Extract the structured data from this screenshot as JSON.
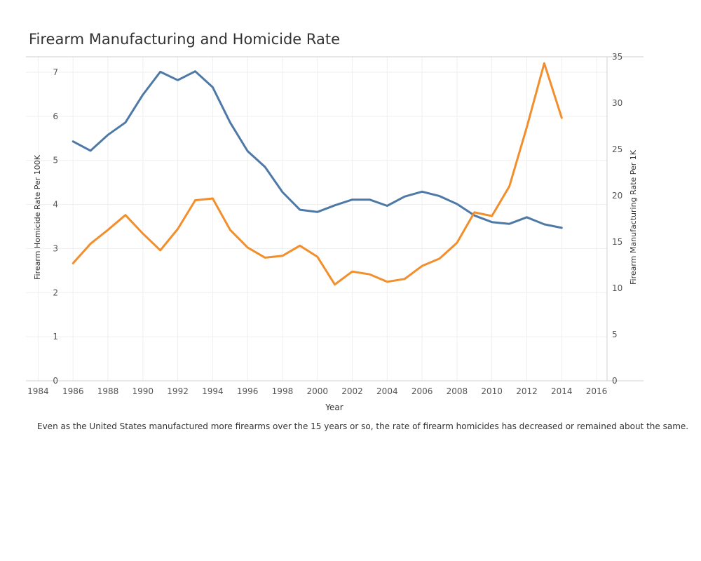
{
  "chart_data": {
    "type": "line",
    "title": "Firearm Manufacturing and Homicide Rate",
    "caption": "Even as the United States manufactured more firearms over the 15 years or so, the rate of firearm homicides has decreased or remained about the same.",
    "xlabel": "Year",
    "ylabel_left": "Firearm Homicide Rate Per 100K",
    "ylabel_right": "Firearm Manufacturing Rate Per 1K",
    "xlim": [
      1983.3,
      2016.6
    ],
    "ylim_left": [
      0,
      7.35
    ],
    "ylim_right": [
      0,
      35
    ],
    "x_ticks": [
      1984,
      1986,
      1988,
      1990,
      1992,
      1994,
      1996,
      1998,
      2000,
      2002,
      2004,
      2006,
      2008,
      2010,
      2012,
      2014,
      2016
    ],
    "y_ticks_left": [
      0,
      1,
      2,
      3,
      4,
      5,
      6,
      7
    ],
    "y_ticks_right": [
      0,
      5,
      10,
      15,
      20,
      25,
      30,
      35
    ],
    "grid": true,
    "series": [
      {
        "axis": "left",
        "color": "#4e79a7",
        "x": [
          1986,
          1987,
          1988,
          1989,
          1990,
          1991,
          1992,
          1993,
          1994,
          1995,
          1996,
          1997,
          1998,
          1999,
          2000,
          2001,
          2002,
          2003,
          2004,
          2005,
          2006,
          2007,
          2008,
          2009,
          2010,
          2011,
          2012,
          2013,
          2014
        ],
        "values": [
          5.43,
          5.22,
          5.58,
          5.86,
          6.49,
          7.01,
          6.82,
          7.02,
          6.66,
          5.86,
          5.21,
          4.85,
          4.28,
          3.88,
          3.83,
          3.98,
          4.11,
          4.11,
          3.97,
          4.18,
          4.29,
          4.19,
          4.01,
          3.75,
          3.6,
          3.56,
          3.71,
          3.55,
          3.47
        ]
      },
      {
        "axis": "right",
        "color": "#f28e2b",
        "x": [
          1986,
          1987,
          1988,
          1989,
          1990,
          1991,
          1992,
          1993,
          1994,
          1995,
          1996,
          1997,
          1998,
          1999,
          2000,
          2001,
          2002,
          2003,
          2004,
          2005,
          2006,
          2007,
          2008,
          2009,
          2010,
          2011,
          2012,
          2013,
          2014
        ],
        "values": [
          12.7,
          14.8,
          16.3,
          17.9,
          15.9,
          14.1,
          16.4,
          19.5,
          19.7,
          16.3,
          14.4,
          13.3,
          13.5,
          14.6,
          13.4,
          10.4,
          11.8,
          11.5,
          10.7,
          11.0,
          12.4,
          13.2,
          14.9,
          18.2,
          17.8,
          21.0,
          27.4,
          34.3,
          28.4
        ]
      }
    ]
  }
}
